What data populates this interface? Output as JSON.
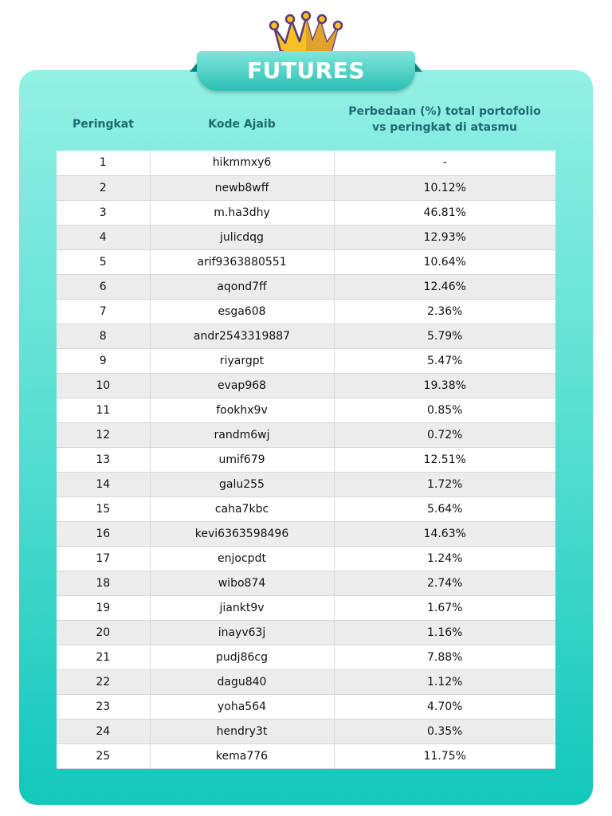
{
  "banner": {
    "title": "FUTURES",
    "icon": "crown-icon"
  },
  "columns": [
    "Peringkat",
    "Kode Ajaib",
    "Perbedaan (%) total portofolio vs peringkat di atasmu"
  ],
  "rows": [
    [
      "1",
      "hikmmxy6",
      "-"
    ],
    [
      "2",
      "newb8wff",
      "10.12%"
    ],
    [
      "3",
      "m.ha3dhy",
      "46.81%"
    ],
    [
      "4",
      "julicdqg",
      "12.93%"
    ],
    [
      "5",
      "arif9363880551",
      "10.64%"
    ],
    [
      "6",
      "aqond7ff",
      "12.46%"
    ],
    [
      "7",
      "esga608",
      "2.36%"
    ],
    [
      "8",
      "andr2543319887",
      "5.79%"
    ],
    [
      "9",
      "riyargpt",
      "5.47%"
    ],
    [
      "10",
      "evap968",
      "19.38%"
    ],
    [
      "11",
      "fookhx9v",
      "0.85%"
    ],
    [
      "12",
      "randm6wj",
      "0.72%"
    ],
    [
      "13",
      "umif679",
      "12.51%"
    ],
    [
      "14",
      "galu255",
      "1.72%"
    ],
    [
      "15",
      "caha7kbc",
      "5.64%"
    ],
    [
      "16",
      "kevi6363598496",
      "14.63%"
    ],
    [
      "17",
      "enjocpdt",
      "1.24%"
    ],
    [
      "18",
      "wibo874",
      "2.74%"
    ],
    [
      "19",
      "jiankt9v",
      "1.67%"
    ],
    [
      "20",
      "inayv63j",
      "1.16%"
    ],
    [
      "21",
      "pudj86cg",
      "7.88%"
    ],
    [
      "22",
      "dagu840",
      "1.12%"
    ],
    [
      "23",
      "yoha564",
      "4.70%"
    ],
    [
      "24",
      "hendry3t",
      "0.35%"
    ],
    [
      "25",
      "kema776",
      "11.75%"
    ]
  ],
  "colors": {
    "accent": "#2cbfb4",
    "header_text": "#1f6a74",
    "crown": "#f5b81c"
  }
}
